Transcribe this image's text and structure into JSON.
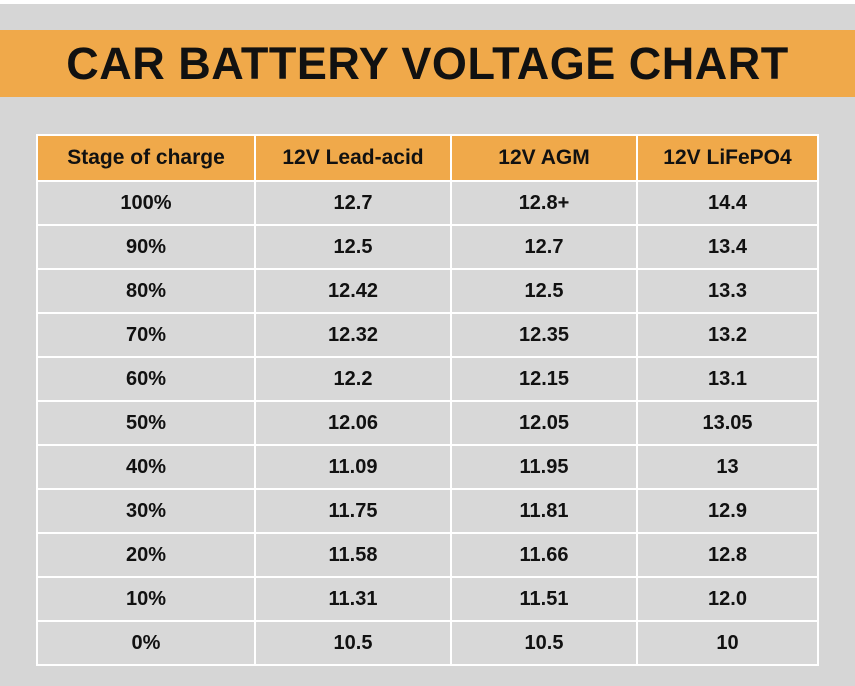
{
  "chart_data": {
    "type": "table",
    "title": "CAR BATTERY VOLTAGE CHART",
    "columns": [
      "Stage of charge",
      "12V Lead-acid",
      "12V AGM",
      "12V LiFePO4"
    ],
    "rows": [
      [
        "100%",
        "12.7",
        "12.8+",
        "14.4"
      ],
      [
        "90%",
        "12.5",
        "12.7",
        "13.4"
      ],
      [
        "80%",
        "12.42",
        "12.5",
        "13.3"
      ],
      [
        "70%",
        "12.32",
        "12.35",
        "13.2"
      ],
      [
        "60%",
        "12.2",
        "12.15",
        "13.1"
      ],
      [
        "50%",
        "12.06",
        "12.05",
        "13.05"
      ],
      [
        "40%",
        "11.09",
        "11.95",
        "13"
      ],
      [
        "30%",
        "11.75",
        "11.81",
        "12.9"
      ],
      [
        "20%",
        "11.58",
        "11.66",
        "12.8"
      ],
      [
        "10%",
        "11.31",
        "11.51",
        "12.0"
      ],
      [
        "0%",
        "10.5",
        "10.5",
        "10"
      ]
    ]
  },
  "colors": {
    "accent": "#f0a94a",
    "background": "#d6d6d6",
    "cell": "#d8d8d8",
    "grid": "#ffffff",
    "text": "#111111"
  }
}
